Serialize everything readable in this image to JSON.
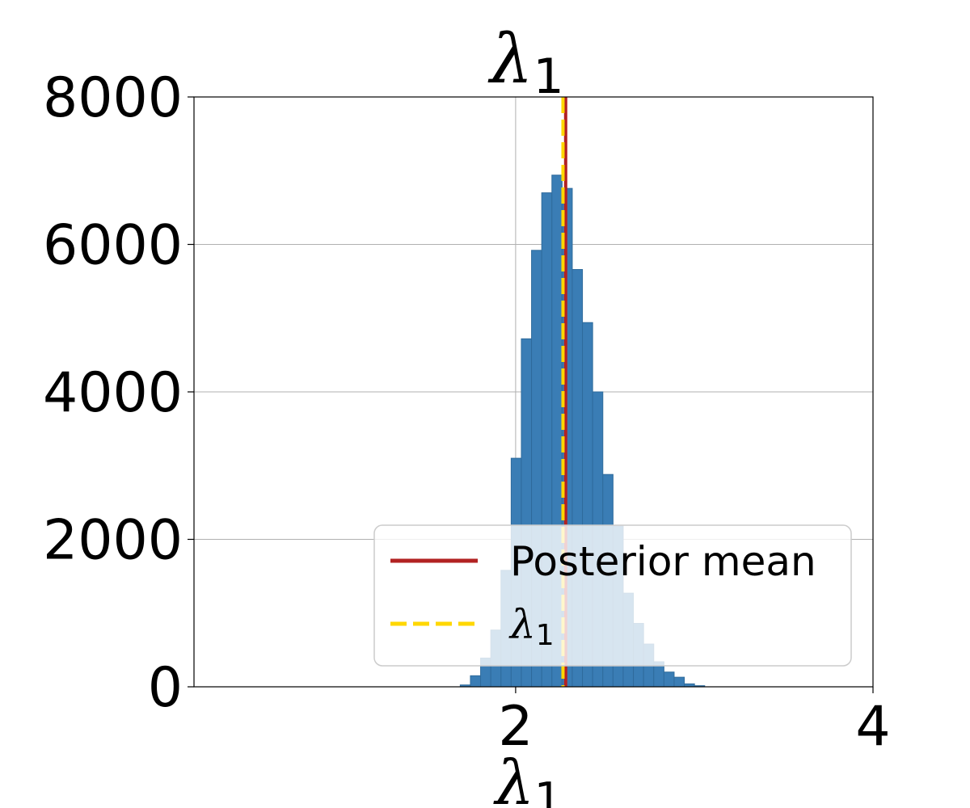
{
  "chart_data": {
    "type": "bar",
    "title": "λ",
    "title_subscript": "1",
    "xlabel": "λ",
    "xlabel_subscript": "1",
    "ylabel": "",
    "xlim": [
      0.2,
      4.0
    ],
    "ylim": [
      0,
      8000
    ],
    "x_ticks": [
      2,
      4
    ],
    "y_ticks": [
      0,
      2000,
      4000,
      6000,
      8000
    ],
    "grid": true,
    "bin_width": 0.057,
    "bins": [
      {
        "x": 1.69,
        "count": 25
      },
      {
        "x": 1.747,
        "count": 150
      },
      {
        "x": 1.804,
        "count": 390
      },
      {
        "x": 1.861,
        "count": 770
      },
      {
        "x": 1.918,
        "count": 1580
      },
      {
        "x": 1.975,
        "count": 3100
      },
      {
        "x": 2.032,
        "count": 4720
      },
      {
        "x": 2.089,
        "count": 5920
      },
      {
        "x": 2.146,
        "count": 6700
      },
      {
        "x": 2.203,
        "count": 6940
      },
      {
        "x": 2.26,
        "count": 6760
      },
      {
        "x": 2.317,
        "count": 5660
      },
      {
        "x": 2.374,
        "count": 4940
      },
      {
        "x": 2.431,
        "count": 4000
      },
      {
        "x": 2.488,
        "count": 2880
      },
      {
        "x": 2.545,
        "count": 2180
      },
      {
        "x": 2.602,
        "count": 1270
      },
      {
        "x": 2.659,
        "count": 860
      },
      {
        "x": 2.716,
        "count": 580
      },
      {
        "x": 2.773,
        "count": 340
      },
      {
        "x": 2.83,
        "count": 200
      },
      {
        "x": 2.887,
        "count": 130
      },
      {
        "x": 2.944,
        "count": 40
      },
      {
        "x": 3.001,
        "count": 15
      }
    ],
    "bar_color": "#3a7db5",
    "vlines": [
      {
        "name": "Posterior mean",
        "x": 2.28,
        "color": "#b22222",
        "style": "solid"
      },
      {
        "name": "λ",
        "name_subscript": "1",
        "x": 2.265,
        "color": "#ffd700",
        "style": "dashed"
      }
    ],
    "legend": {
      "position": "lower-right",
      "entries": [
        {
          "label": "Posterior mean",
          "color": "#b22222",
          "style": "solid"
        },
        {
          "label": "λ",
          "label_subscript": "1",
          "color": "#ffd700",
          "style": "dashed"
        }
      ]
    }
  }
}
